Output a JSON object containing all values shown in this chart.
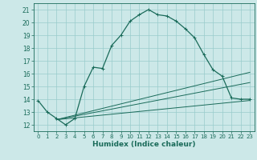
{
  "title": "",
  "xlabel": "Humidex (Indice chaleur)",
  "bg_color": "#cce8e8",
  "grid_color": "#99cccc",
  "line_color": "#1a6b5a",
  "x_ticks": [
    0,
    1,
    2,
    3,
    4,
    5,
    6,
    7,
    8,
    9,
    10,
    11,
    12,
    13,
    14,
    15,
    16,
    17,
    18,
    19,
    20,
    21,
    22,
    23
  ],
  "y_ticks": [
    12,
    13,
    14,
    15,
    16,
    17,
    18,
    19,
    20,
    21
  ],
  "xlim": [
    -0.5,
    23.5
  ],
  "ylim": [
    11.5,
    21.5
  ],
  "series1": {
    "x": [
      0,
      1,
      2,
      3,
      4,
      5,
      6,
      7,
      8,
      9,
      10,
      11,
      12,
      13,
      14,
      15,
      16,
      17,
      18,
      19,
      20,
      21,
      22,
      23
    ],
    "y": [
      13.9,
      13.0,
      12.5,
      12.0,
      12.5,
      15.0,
      16.5,
      16.4,
      18.2,
      19.0,
      20.1,
      20.6,
      21.0,
      20.6,
      20.5,
      20.1,
      19.5,
      18.8,
      17.5,
      16.3,
      15.8,
      14.1,
      14.0,
      14.0
    ]
  },
  "series2": {
    "x": [
      2,
      23
    ],
    "y": [
      12.4,
      16.1
    ]
  },
  "series3": {
    "x": [
      2,
      23
    ],
    "y": [
      12.4,
      15.3
    ]
  },
  "series4": {
    "x": [
      2,
      23
    ],
    "y": [
      12.4,
      13.9
    ]
  }
}
